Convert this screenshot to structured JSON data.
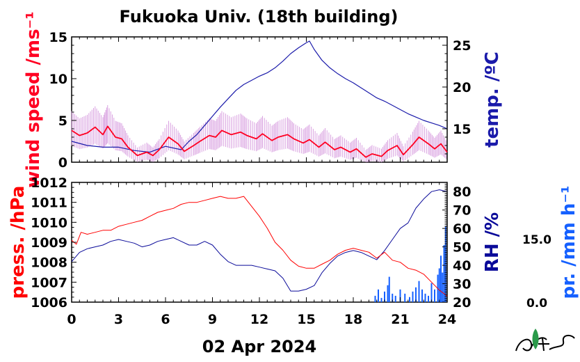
{
  "title": "Fukuoka Univ. (18th building)",
  "date_label": "02 Apr 2024",
  "colors": {
    "wind": "#ff0022",
    "wind_raw": "#d9a0e0",
    "temp": "#1a1aaa",
    "pressure": "#ff0000",
    "rh": "#0a0a99",
    "precip": "#1560ff",
    "axis": "#000000"
  },
  "chart_data": [
    {
      "type": "line",
      "panel": "top",
      "x_ticks": [
        "0",
        "3",
        "6",
        "9",
        "12",
        "15",
        "18",
        "21",
        "24"
      ],
      "xlim": [
        0,
        24
      ],
      "left_axis": {
        "label": "wind speed /ms⁻¹",
        "ylim": [
          0,
          15
        ],
        "ticks": [
          "0",
          "5",
          "10",
          "15"
        ]
      },
      "right_axis": {
        "label": "temp. /ºC",
        "ylim": [
          11,
          26
        ],
        "ticks": [
          "15",
          "20",
          "25"
        ]
      },
      "series": [
        {
          "axis": "left",
          "x": [
            0,
            0.5,
            1,
            1.5,
            2,
            2.3,
            2.8,
            3.2,
            3.6,
            4.2,
            4.8,
            5.2,
            5.6,
            6.2,
            6.8,
            7.2,
            7.8,
            8.2,
            8.8,
            9.2,
            9.6,
            10.2,
            10.8,
            11.2,
            11.8,
            12.2,
            12.8,
            13.2,
            13.8,
            14.2,
            14.8,
            15.2,
            15.8,
            16.2,
            16.8,
            17.2,
            17.8,
            18.2,
            18.8,
            19.2,
            19.8,
            20.2,
            20.8,
            21.2,
            21.8,
            22.2,
            22.8,
            23.2,
            23.6,
            24
          ],
          "values": [
            3.8,
            3.2,
            3.5,
            4.2,
            3.3,
            4.3,
            3.0,
            2.8,
            1.8,
            0.8,
            1.2,
            0.8,
            1.5,
            3.0,
            2.2,
            1.3,
            2.0,
            2.5,
            3.2,
            3.0,
            3.8,
            3.3,
            3.6,
            3.2,
            2.8,
            3.4,
            2.6,
            3.0,
            3.3,
            2.8,
            2.3,
            2.7,
            1.8,
            2.4,
            1.5,
            1.8,
            1.2,
            1.6,
            0.6,
            1.0,
            0.7,
            1.4,
            2.0,
            0.9,
            2.1,
            3.0,
            2.2,
            1.6,
            2.2,
            1.2
          ]
        },
        {
          "axis": "right",
          "x": [
            0,
            1,
            2,
            3,
            4,
            5,
            6,
            7,
            7.5,
            8,
            8.5,
            9,
            9.5,
            10,
            10.5,
            11,
            11.5,
            12,
            12.5,
            13,
            13.5,
            14,
            14.5,
            15,
            15.2,
            15.5,
            16,
            16.5,
            17,
            17.5,
            18,
            18.5,
            19,
            19.5,
            20,
            20.5,
            21,
            21.5,
            22,
            22.5,
            23,
            23.5,
            24
          ],
          "values": [
            13.5,
            13.0,
            12.8,
            12.8,
            12.4,
            12.2,
            12.9,
            12.5,
            13.5,
            14.3,
            15.4,
            16.5,
            17.6,
            18.6,
            19.6,
            20.3,
            20.8,
            21.3,
            21.7,
            22.3,
            23.1,
            24.0,
            24.7,
            25.3,
            25.5,
            24.5,
            23.2,
            22.3,
            21.6,
            21.0,
            20.5,
            19.9,
            19.3,
            18.7,
            18.3,
            17.8,
            17.3,
            16.8,
            16.4,
            16.0,
            15.7,
            15.4,
            15.0
          ]
        }
      ]
    },
    {
      "type": "line",
      "panel": "bottom",
      "x_ticks": [
        "0",
        "3",
        "6",
        "9",
        "12",
        "15",
        "18",
        "21",
        "24"
      ],
      "xlim": [
        0,
        24
      ],
      "xlabel": "02 Apr 2024",
      "left_axis": {
        "label": "press. /hPa",
        "ylim": [
          1006,
          1012
        ],
        "ticks": [
          "1006",
          "1007",
          "1008",
          "1009",
          "1010",
          "1011",
          "1012"
        ]
      },
      "right_axis": {
        "label": "RH /%",
        "ylim": [
          20,
          85
        ],
        "ticks": [
          "20",
          "30",
          "40",
          "50",
          "60",
          "70",
          "80"
        ]
      },
      "precip_axis": {
        "label": "pr. /mm h⁻¹",
        "ticks": [
          "0.0",
          "15.0"
        ]
      },
      "series": [
        {
          "axis": "left",
          "x": [
            0,
            0.3,
            0.6,
            1,
            1.5,
            2,
            2.5,
            3,
            3.5,
            4,
            4.5,
            5,
            5.5,
            6,
            6.5,
            7,
            7.5,
            8,
            8.5,
            9,
            9.5,
            10,
            10.5,
            11,
            11.5,
            12,
            12.5,
            13,
            13.5,
            14,
            14.5,
            15,
            15.5,
            16,
            16.5,
            17,
            17.5,
            18,
            18.5,
            19,
            19.5,
            20,
            20.5,
            21,
            21.5,
            22,
            22.5,
            23,
            23.5,
            24
          ],
          "values": [
            1009.1,
            1008.9,
            1009.5,
            1009.4,
            1009.5,
            1009.6,
            1009.6,
            1009.8,
            1009.9,
            1010.0,
            1010.1,
            1010.3,
            1010.5,
            1010.6,
            1010.7,
            1010.9,
            1011.0,
            1011.0,
            1011.1,
            1011.2,
            1011.3,
            1011.2,
            1011.2,
            1011.3,
            1010.8,
            1010.3,
            1009.7,
            1009.0,
            1008.6,
            1008.1,
            1007.8,
            1007.7,
            1007.7,
            1007.9,
            1008.1,
            1008.4,
            1008.6,
            1008.7,
            1008.6,
            1008.5,
            1008.2,
            1008.5,
            1008.1,
            1008.0,
            1007.7,
            1007.6,
            1007.4,
            1007.0,
            1006.6,
            1006.3
          ]
        },
        {
          "axis": "right",
          "x": [
            0,
            0.5,
            1,
            1.5,
            2,
            2.5,
            3,
            3.5,
            4,
            4.5,
            5,
            5.5,
            6,
            6.5,
            7,
            7.5,
            8,
            8.5,
            9,
            9.5,
            10,
            10.5,
            11,
            11.5,
            12,
            12.5,
            13,
            13.5,
            14,
            14.5,
            15,
            15.5,
            16,
            16.5,
            17,
            17.5,
            18,
            18.5,
            19,
            19.5,
            20,
            20.5,
            21,
            21.5,
            22,
            22.5,
            23,
            23.5,
            24
          ],
          "values": [
            42,
            47,
            49,
            50,
            51,
            53,
            54,
            53,
            52,
            50,
            51,
            53,
            54,
            55,
            53,
            51,
            51,
            53,
            51,
            46,
            42,
            40,
            40,
            40,
            39,
            38,
            37,
            33,
            26,
            26,
            27,
            29,
            36,
            41,
            45,
            47,
            48,
            47,
            45,
            43,
            48,
            54,
            60,
            63,
            71,
            76,
            80,
            81,
            80
          ]
        },
        {
          "axis": "precip",
          "type": "bar",
          "x": [
            19.4,
            19.6,
            19.8,
            20.0,
            20.2,
            20.3,
            20.5,
            20.7,
            21.0,
            21.3,
            21.6,
            21.8,
            22.0,
            22.2,
            22.4,
            22.6,
            22.8,
            23.0,
            23.2,
            23.4,
            23.5,
            23.6,
            23.7,
            23.8,
            23.9
          ],
          "values": [
            1.5,
            3.0,
            1.0,
            2.5,
            4.0,
            6.0,
            2.0,
            1.5,
            3.0,
            2.0,
            1.2,
            2.5,
            3.5,
            5.0,
            3.0,
            2.0,
            1.5,
            4.5,
            3.0,
            6.5,
            8.0,
            11.0,
            7.0,
            13.5,
            18.0
          ]
        }
      ]
    }
  ]
}
